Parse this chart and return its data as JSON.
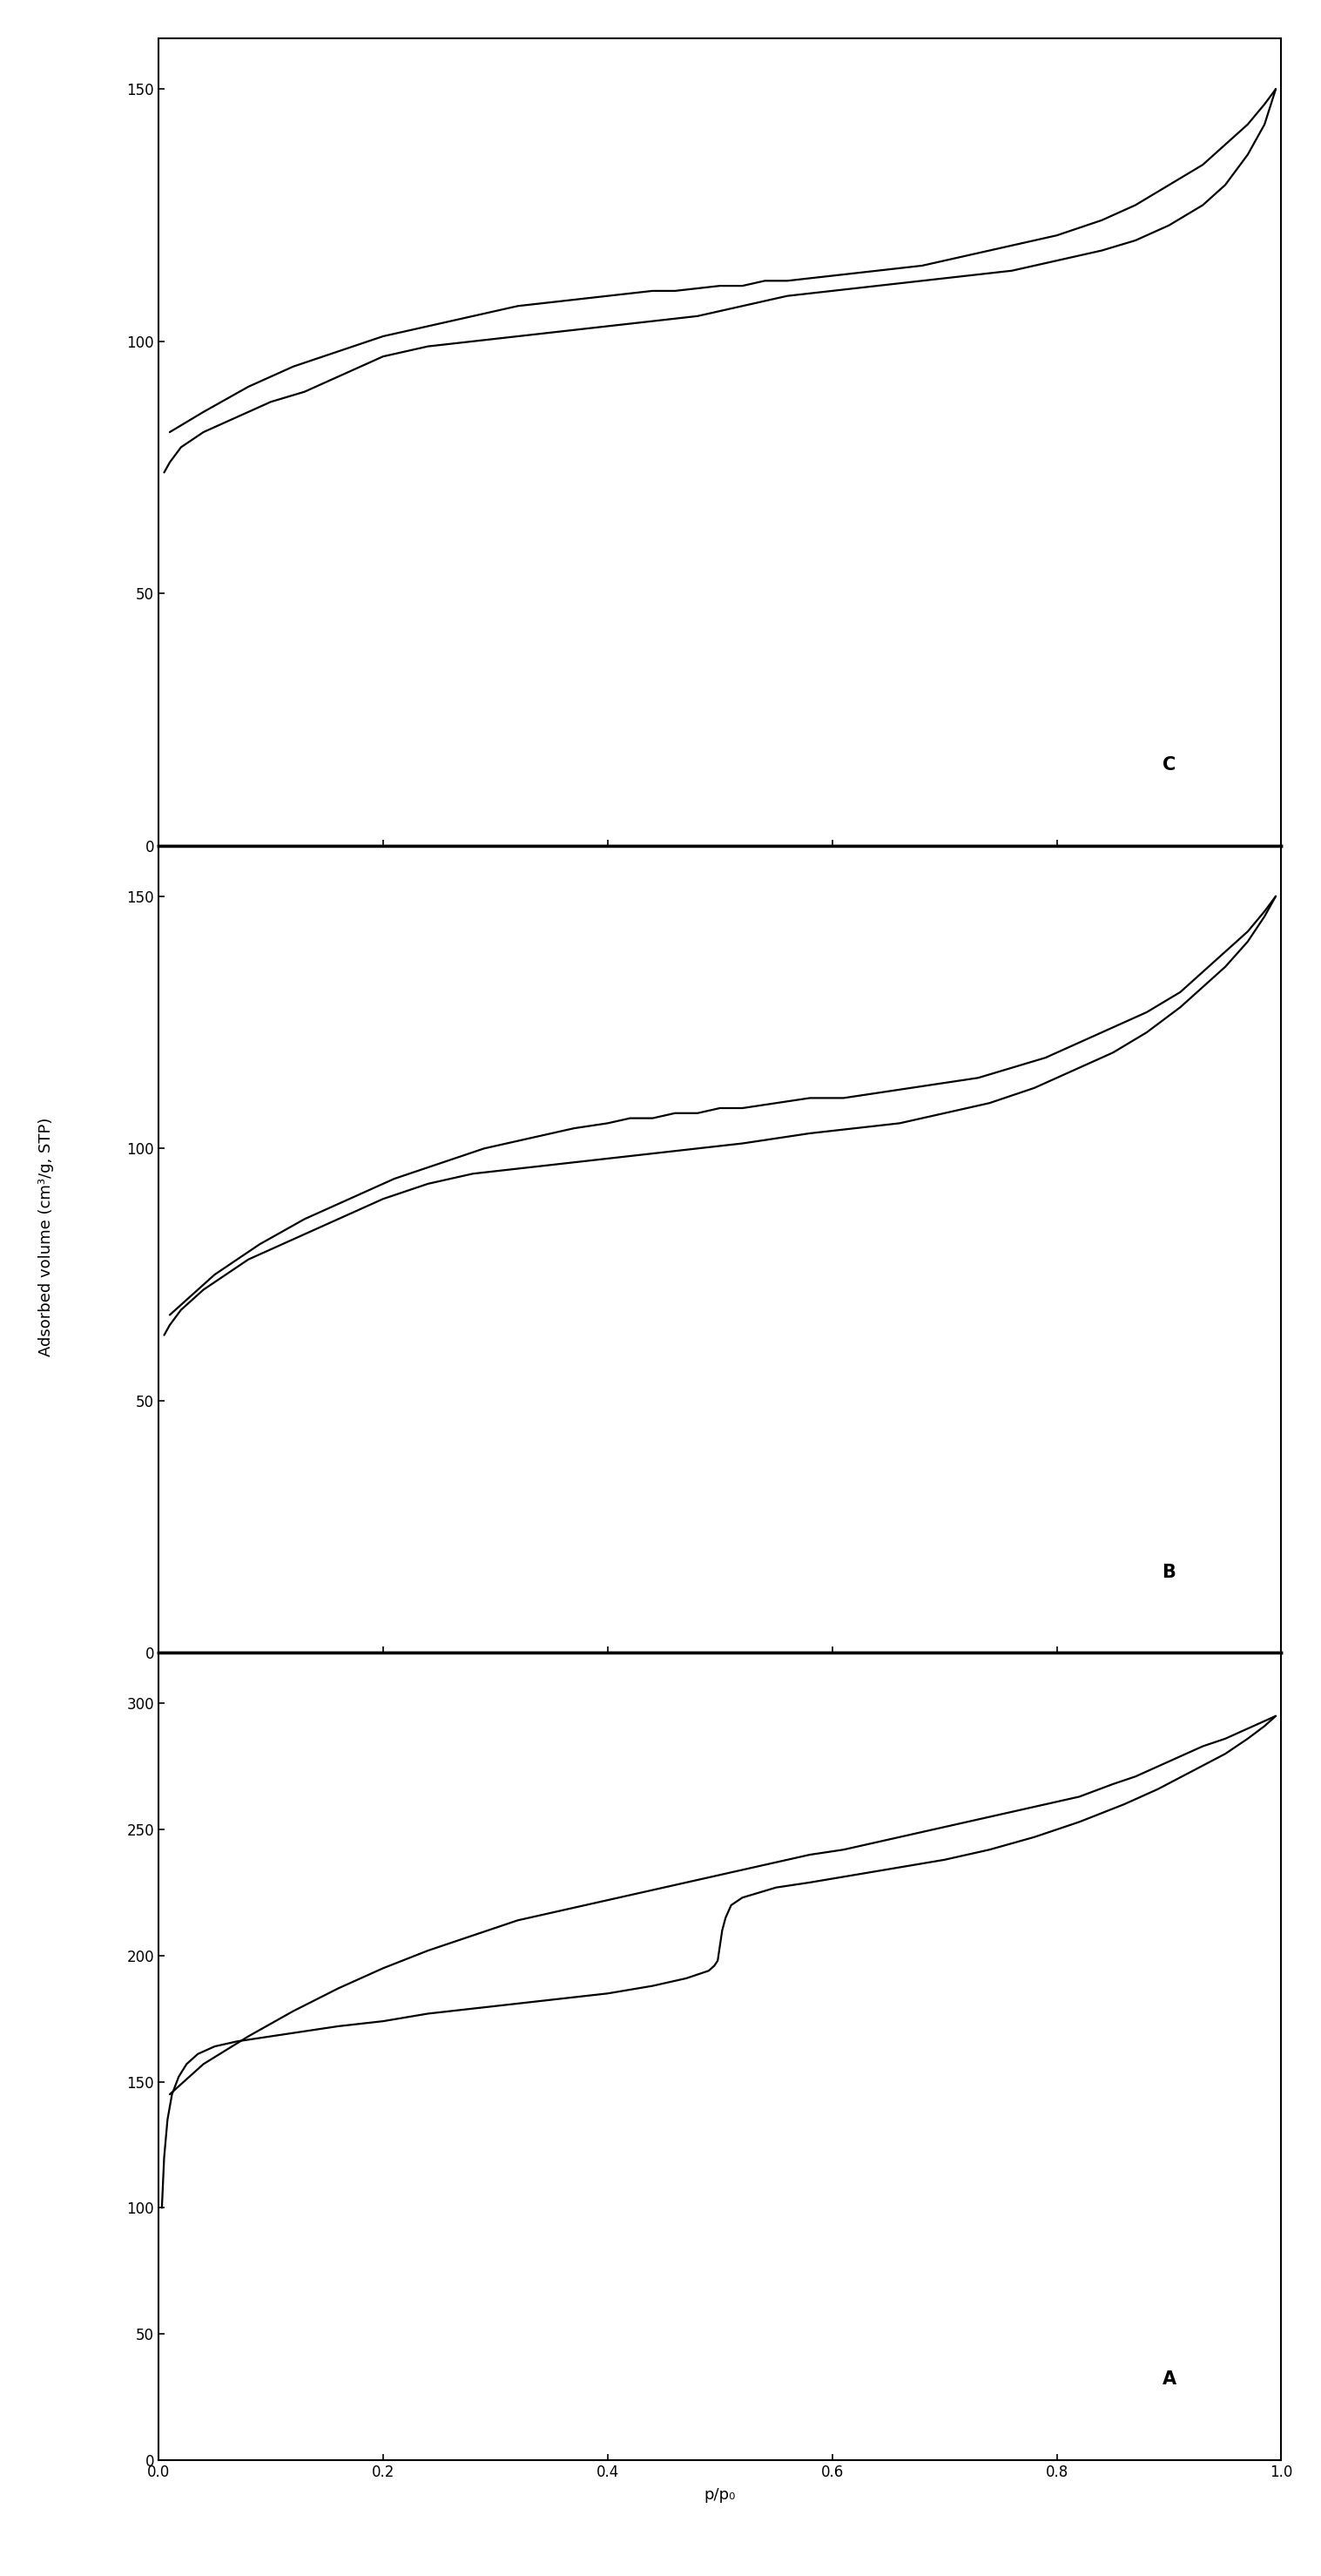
{
  "panel_C": {
    "label": "C",
    "ylim": [
      0,
      160
    ],
    "yticks": [
      0,
      50,
      100,
      150
    ],
    "adsorption_x": [
      0.005,
      0.01,
      0.02,
      0.04,
      0.06,
      0.08,
      0.1,
      0.13,
      0.16,
      0.2,
      0.24,
      0.28,
      0.32,
      0.36,
      0.4,
      0.42,
      0.44,
      0.46,
      0.48,
      0.5,
      0.52,
      0.54,
      0.56,
      0.6,
      0.64,
      0.68,
      0.72,
      0.76,
      0.8,
      0.84,
      0.87,
      0.9,
      0.93,
      0.95,
      0.97,
      0.985,
      0.995
    ],
    "adsorption_y": [
      74,
      76,
      79,
      82,
      84,
      86,
      88,
      90,
      93,
      97,
      99,
      100,
      101,
      102,
      103,
      103.5,
      104,
      104.5,
      105,
      106,
      107,
      108,
      109,
      110,
      111,
      112,
      113,
      114,
      116,
      118,
      120,
      123,
      127,
      131,
      137,
      143,
      150
    ],
    "desorption_x": [
      0.995,
      0.985,
      0.97,
      0.95,
      0.93,
      0.9,
      0.87,
      0.84,
      0.8,
      0.76,
      0.72,
      0.68,
      0.64,
      0.6,
      0.56,
      0.54,
      0.52,
      0.5,
      0.48,
      0.46,
      0.44,
      0.42,
      0.4,
      0.38,
      0.36,
      0.34,
      0.32,
      0.28,
      0.24,
      0.2,
      0.16,
      0.12,
      0.08,
      0.04,
      0.01
    ],
    "desorption_y": [
      150,
      147,
      143,
      139,
      135,
      131,
      127,
      124,
      121,
      119,
      117,
      115,
      114,
      113,
      112,
      112,
      111,
      111,
      110.5,
      110,
      110,
      109.5,
      109,
      108.5,
      108,
      107.5,
      107,
      105,
      103,
      101,
      98,
      95,
      91,
      86,
      82
    ]
  },
  "panel_B": {
    "label": "B",
    "ylim": [
      0,
      160
    ],
    "yticks": [
      0,
      50,
      100,
      150
    ],
    "adsorption_x": [
      0.005,
      0.01,
      0.02,
      0.04,
      0.06,
      0.08,
      0.1,
      0.13,
      0.16,
      0.2,
      0.24,
      0.28,
      0.32,
      0.36,
      0.4,
      0.44,
      0.46,
      0.48,
      0.5,
      0.52,
      0.55,
      0.58,
      0.62,
      0.66,
      0.7,
      0.74,
      0.78,
      0.82,
      0.85,
      0.88,
      0.91,
      0.93,
      0.95,
      0.97,
      0.985,
      0.995
    ],
    "adsorption_y": [
      63,
      65,
      68,
      72,
      75,
      78,
      80,
      83,
      86,
      90,
      93,
      95,
      96,
      97,
      98,
      99,
      99.5,
      100,
      100.5,
      101,
      102,
      103,
      104,
      105,
      107,
      109,
      112,
      116,
      119,
      123,
      128,
      132,
      136,
      141,
      146,
      150
    ],
    "desorption_x": [
      0.995,
      0.985,
      0.97,
      0.95,
      0.93,
      0.91,
      0.88,
      0.85,
      0.82,
      0.79,
      0.76,
      0.73,
      0.7,
      0.67,
      0.64,
      0.61,
      0.58,
      0.55,
      0.52,
      0.5,
      0.48,
      0.46,
      0.44,
      0.42,
      0.4,
      0.37,
      0.33,
      0.29,
      0.25,
      0.21,
      0.17,
      0.13,
      0.09,
      0.05,
      0.01
    ],
    "desorption_y": [
      150,
      147,
      143,
      139,
      135,
      131,
      127,
      124,
      121,
      118,
      116,
      114,
      113,
      112,
      111,
      110,
      110,
      109,
      108,
      108,
      107,
      107,
      106,
      106,
      105,
      104,
      102,
      100,
      97,
      94,
      90,
      86,
      81,
      75,
      67
    ]
  },
  "panel_A": {
    "label": "A",
    "ylim": [
      0,
      320
    ],
    "yticks": [
      0,
      50,
      100,
      150,
      200,
      250,
      300
    ],
    "adsorption_x": [
      0.003,
      0.005,
      0.008,
      0.012,
      0.018,
      0.025,
      0.035,
      0.05,
      0.07,
      0.1,
      0.13,
      0.16,
      0.2,
      0.24,
      0.28,
      0.32,
      0.36,
      0.4,
      0.44,
      0.47,
      0.49,
      0.495,
      0.498,
      0.502,
      0.505,
      0.51,
      0.52,
      0.55,
      0.58,
      0.62,
      0.66,
      0.7,
      0.74,
      0.78,
      0.82,
      0.86,
      0.89,
      0.92,
      0.95,
      0.97,
      0.985,
      0.995
    ],
    "adsorption_y": [
      100,
      120,
      135,
      145,
      152,
      157,
      161,
      164,
      166,
      168,
      170,
      172,
      174,
      177,
      179,
      181,
      183,
      185,
      188,
      191,
      194,
      196,
      198,
      210,
      215,
      220,
      223,
      227,
      229,
      232,
      235,
      238,
      242,
      247,
      253,
      260,
      266,
      273,
      280,
      286,
      291,
      295
    ],
    "desorption_x": [
      0.995,
      0.985,
      0.97,
      0.95,
      0.93,
      0.91,
      0.89,
      0.87,
      0.85,
      0.82,
      0.79,
      0.76,
      0.73,
      0.7,
      0.67,
      0.64,
      0.61,
      0.58,
      0.55,
      0.52,
      0.5,
      0.48,
      0.46,
      0.43,
      0.4,
      0.36,
      0.32,
      0.28,
      0.24,
      0.2,
      0.16,
      0.12,
      0.08,
      0.04,
      0.01
    ],
    "desorption_y": [
      295,
      293,
      290,
      286,
      283,
      279,
      275,
      271,
      268,
      263,
      260,
      257,
      254,
      251,
      248,
      245,
      242,
      240,
      237,
      234,
      232,
      230,
      228,
      225,
      222,
      218,
      214,
      208,
      202,
      195,
      187,
      178,
      168,
      157,
      145
    ]
  },
  "xlabel": "p/p₀",
  "ylabel": "Adsorbed volume (cm³/g, STP)",
  "xlim": [
    0.0,
    1.0
  ],
  "xticks": [
    0.0,
    0.2,
    0.4,
    0.6,
    0.8,
    1.0
  ],
  "line_color": "#000000",
  "line_width": 1.6,
  "background_color": "#ffffff",
  "ylabel_fontsize": 13,
  "xlabel_fontsize": 13,
  "tick_fontsize": 12,
  "panel_label_fontsize": 15
}
